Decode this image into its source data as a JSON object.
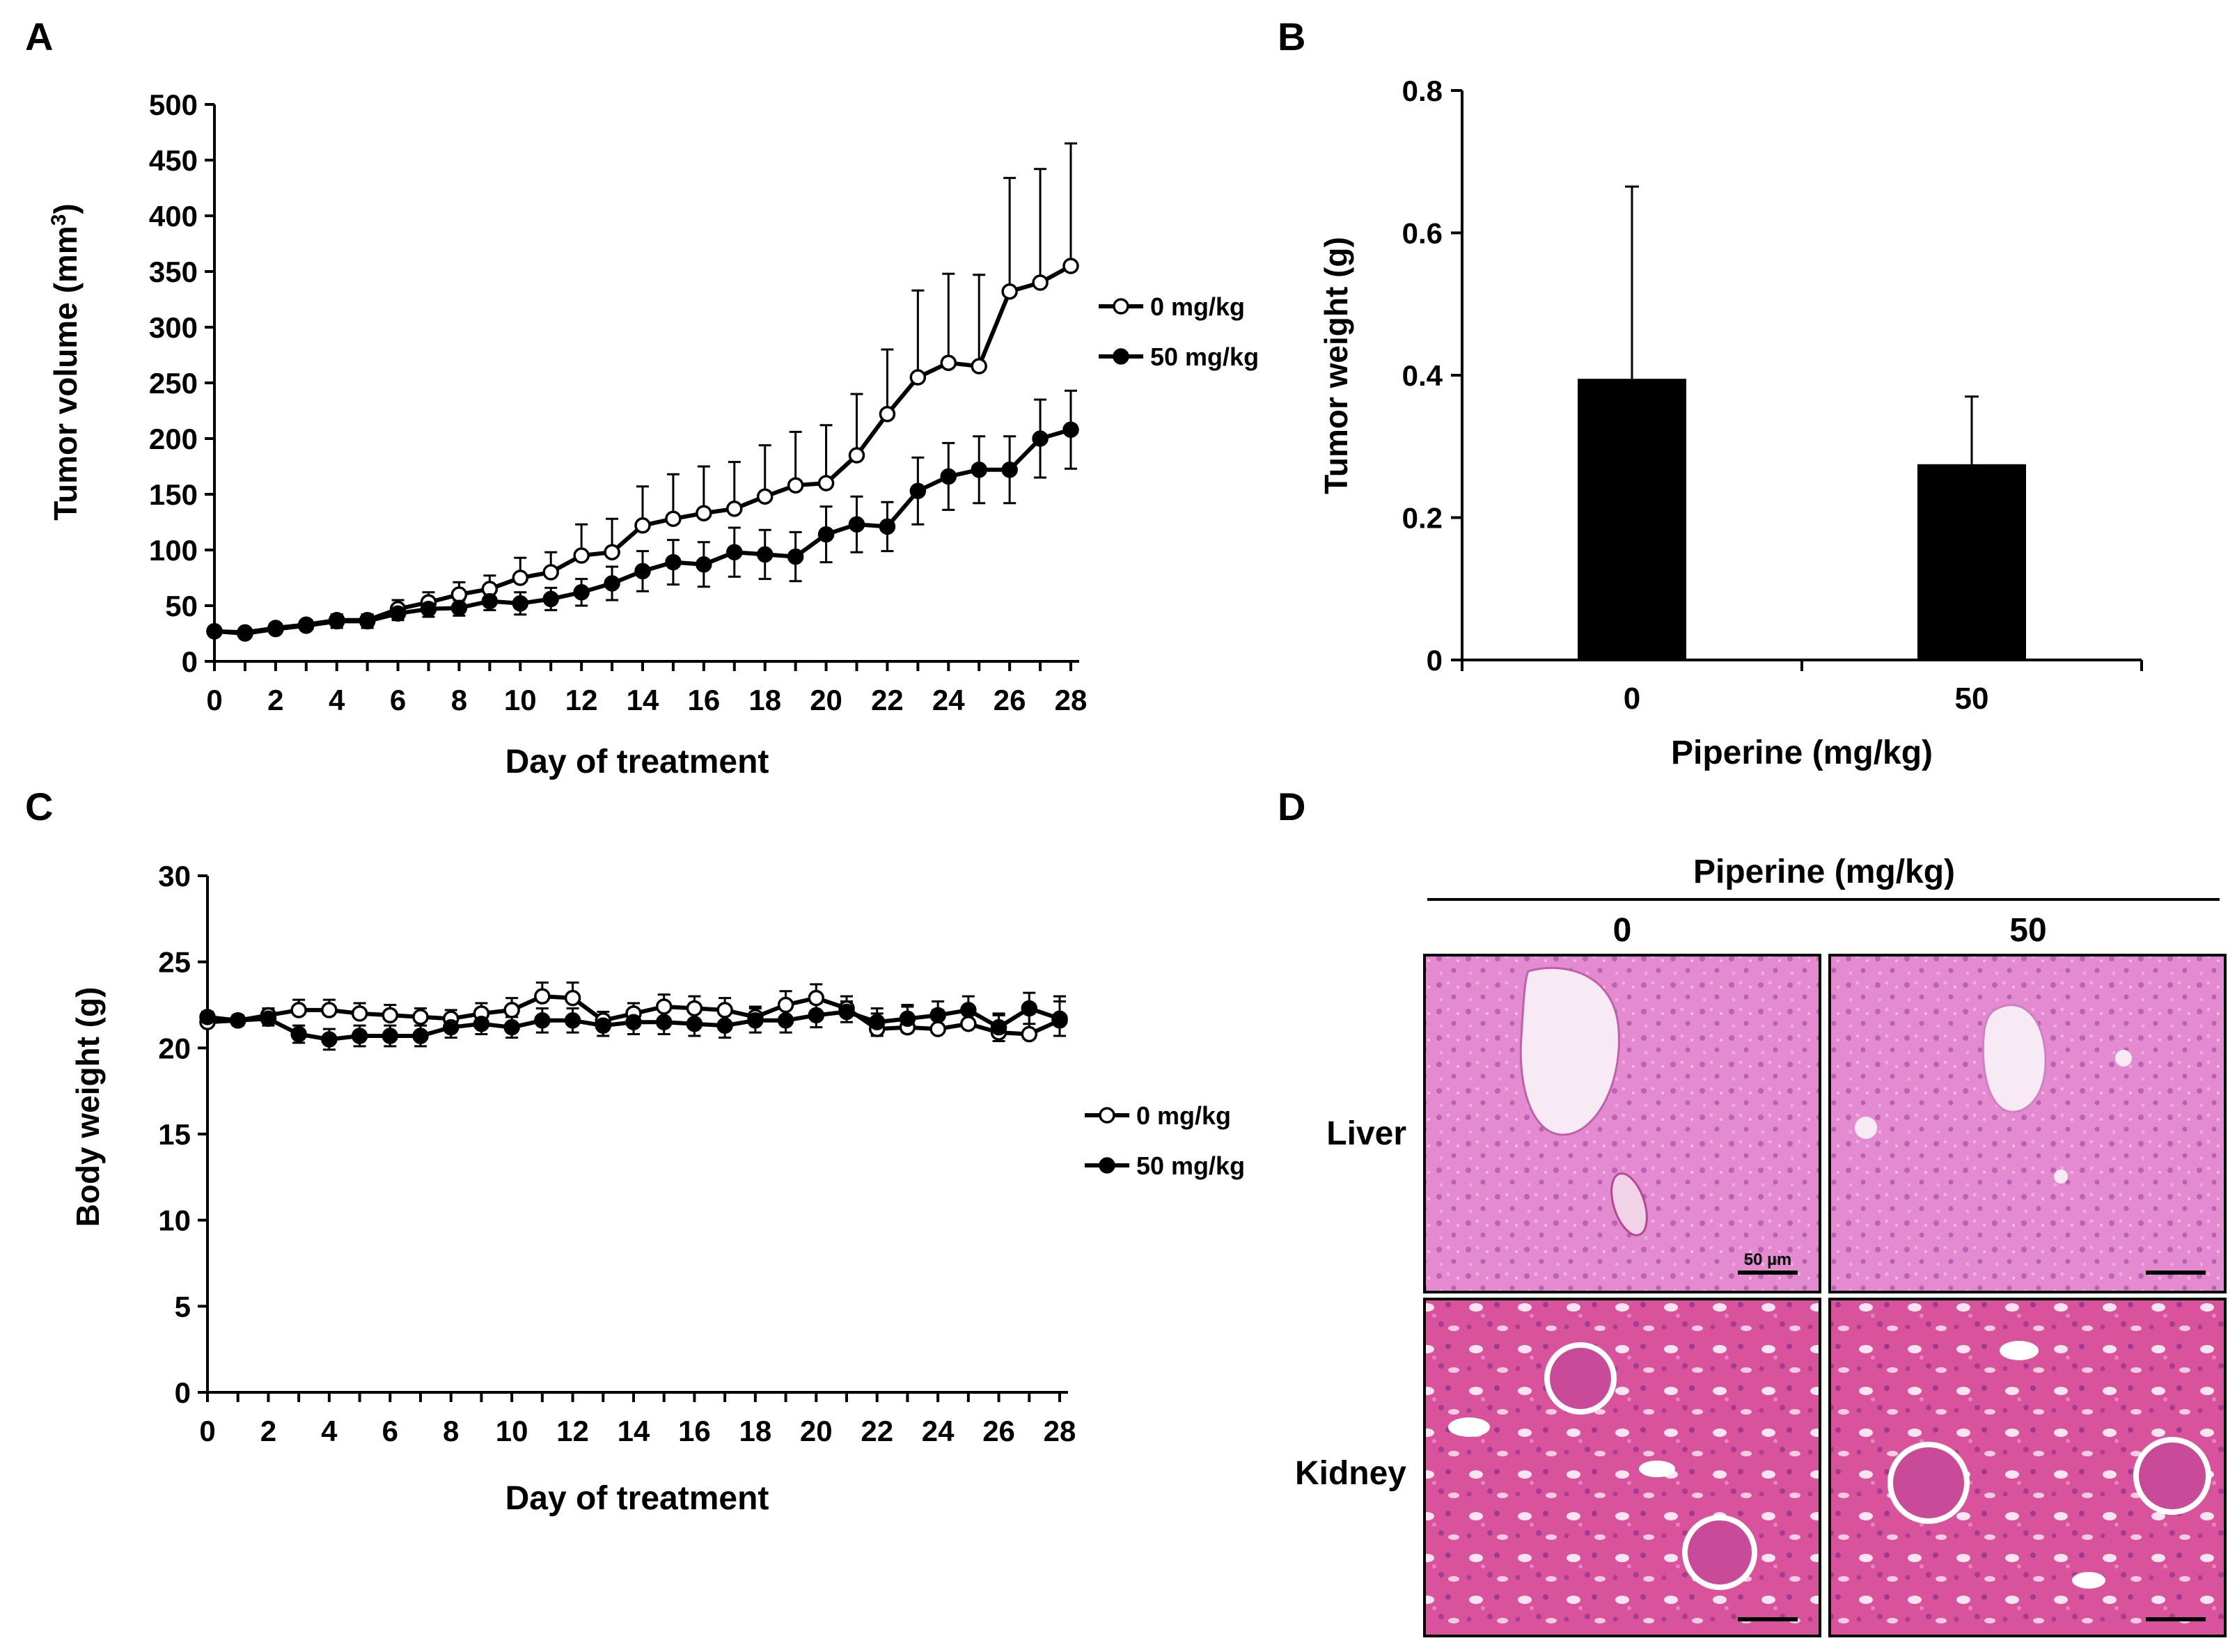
{
  "panel_labels": {
    "a": "A",
    "b": "B",
    "c": "C",
    "d": "D"
  },
  "chart_data": [
    {
      "id": "A",
      "type": "line",
      "xlabel": "Day of treatment",
      "ylabel_main": "Tumor volume (mm",
      "ylabel_sup": "3",
      "ylabel_close": ")",
      "xlim": [
        0,
        28
      ],
      "ylim": [
        0,
        500
      ],
      "xticks": [
        0,
        2,
        4,
        6,
        8,
        10,
        12,
        14,
        16,
        18,
        20,
        22,
        24,
        26,
        28
      ],
      "yticks": [
        0,
        50,
        100,
        150,
        200,
        250,
        300,
        350,
        400,
        450,
        500
      ],
      "legend": [
        "0 mg/kg",
        "50 mg/kg"
      ],
      "x": [
        0,
        1,
        2,
        3,
        4,
        5,
        6,
        7,
        8,
        9,
        10,
        11,
        12,
        13,
        14,
        15,
        16,
        17,
        18,
        19,
        20,
        21,
        22,
        23,
        24,
        25,
        26,
        27,
        28
      ],
      "series": [
        {
          "name": "0 mg/kg",
          "marker": "open",
          "values": [
            27,
            26,
            30,
            33,
            37,
            37,
            47,
            53,
            60,
            65,
            75,
            80,
            95,
            98,
            122,
            128,
            133,
            137,
            148,
            158,
            160,
            185,
            222,
            255,
            268,
            265,
            332,
            340,
            355
          ],
          "err": [
            4,
            3,
            4,
            4,
            5,
            5,
            8,
            9,
            11,
            12,
            18,
            18,
            28,
            30,
            35,
            40,
            42,
            42,
            46,
            48,
            52,
            55,
            58,
            78,
            80,
            82,
            102,
            102,
            110
          ]
        },
        {
          "name": "50 mg/kg",
          "marker": "filled",
          "values": [
            27,
            25,
            29,
            32,
            36,
            36,
            43,
            47,
            48,
            54,
            52,
            56,
            62,
            70,
            81,
            89,
            87,
            98,
            96,
            94,
            114,
            123,
            121,
            153,
            166,
            172,
            172,
            200,
            208
          ],
          "err": [
            4,
            3,
            4,
            4,
            6,
            6,
            6,
            7,
            7,
            8,
            10,
            10,
            12,
            15,
            18,
            20,
            20,
            22,
            22,
            22,
            25,
            25,
            22,
            30,
            30,
            30,
            30,
            35,
            35
          ]
        }
      ]
    },
    {
      "id": "B",
      "type": "bar",
      "xlabel": "Piperine (mg/kg)",
      "ylabel": "Tumor weight (g)",
      "categories": [
        "0",
        "50"
      ],
      "values": [
        0.395,
        0.275
      ],
      "err": [
        0.27,
        0.095
      ],
      "ylim": [
        0,
        0.8
      ],
      "yticks": [
        0,
        0.2,
        0.4,
        0.6,
        0.8
      ],
      "ytick_labels": [
        "0",
        "0.2",
        "0.4",
        "0.6",
        "0.8"
      ]
    },
    {
      "id": "C",
      "type": "line",
      "xlabel": "Day of treatment",
      "ylabel": "Body weight (g)",
      "xlim": [
        0,
        28
      ],
      "ylim": [
        0,
        30
      ],
      "xticks": [
        0,
        2,
        4,
        6,
        8,
        10,
        12,
        14,
        16,
        18,
        20,
        22,
        24,
        26,
        28
      ],
      "yticks": [
        0,
        5,
        10,
        15,
        20,
        25,
        30
      ],
      "legend": [
        "0 mg/kg",
        "50 mg/kg"
      ],
      "x": [
        0,
        1,
        2,
        3,
        4,
        5,
        6,
        7,
        8,
        9,
        10,
        11,
        12,
        13,
        14,
        15,
        16,
        17,
        18,
        19,
        20,
        21,
        22,
        23,
        24,
        25,
        26,
        27,
        28
      ],
      "series": [
        {
          "name": "0 mg/kg",
          "marker": "open",
          "values": [
            21.5,
            21.6,
            21.9,
            22.2,
            22.2,
            22.0,
            21.9,
            21.8,
            21.7,
            22.0,
            22.2,
            23.0,
            22.9,
            21.6,
            22.0,
            22.4,
            22.3,
            22.2,
            21.8,
            22.5,
            22.9,
            22.3,
            21.1,
            21.2,
            21.1,
            21.4,
            20.9,
            20.8,
            21.6
          ],
          "err": [
            0.3,
            0.3,
            0.4,
            0.6,
            0.6,
            0.6,
            0.6,
            0.5,
            0.5,
            0.6,
            0.7,
            0.8,
            0.9,
            0.5,
            0.6,
            0.7,
            0.7,
            0.7,
            0.6,
            0.8,
            0.8,
            0.7,
            0.9,
            1.2,
            1.1,
            1.0,
            1.0,
            1.2,
            1.4
          ]
        },
        {
          "name": "50 mg/kg",
          "marker": "filled",
          "values": [
            21.8,
            21.6,
            21.7,
            20.8,
            20.5,
            20.7,
            20.7,
            20.7,
            21.2,
            21.4,
            21.2,
            21.6,
            21.6,
            21.3,
            21.5,
            21.5,
            21.4,
            21.3,
            21.6,
            21.6,
            21.9,
            22.1,
            21.5,
            21.7,
            21.9,
            22.2,
            21.2,
            22.3,
            21.7
          ],
          "err": [
            0.3,
            0.3,
            0.4,
            0.5,
            0.6,
            0.6,
            0.6,
            0.6,
            0.6,
            0.6,
            0.6,
            0.7,
            0.7,
            0.6,
            0.7,
            0.7,
            0.7,
            0.7,
            0.7,
            0.7,
            0.7,
            0.6,
            0.8,
            0.8,
            0.8,
            0.8,
            0.8,
            0.9,
            1.0
          ]
        }
      ]
    }
  ],
  "histology": {
    "header": "Piperine (mg/kg)",
    "columns": [
      "0",
      "50"
    ],
    "rows": [
      "Liver",
      "Kidney"
    ],
    "scale_label": "50 µm"
  },
  "colors": {
    "ink": "#000000",
    "liver_bg": "#e48ad0",
    "kidney_bg": "#d9539c",
    "vessel": "#f7eaf4"
  }
}
